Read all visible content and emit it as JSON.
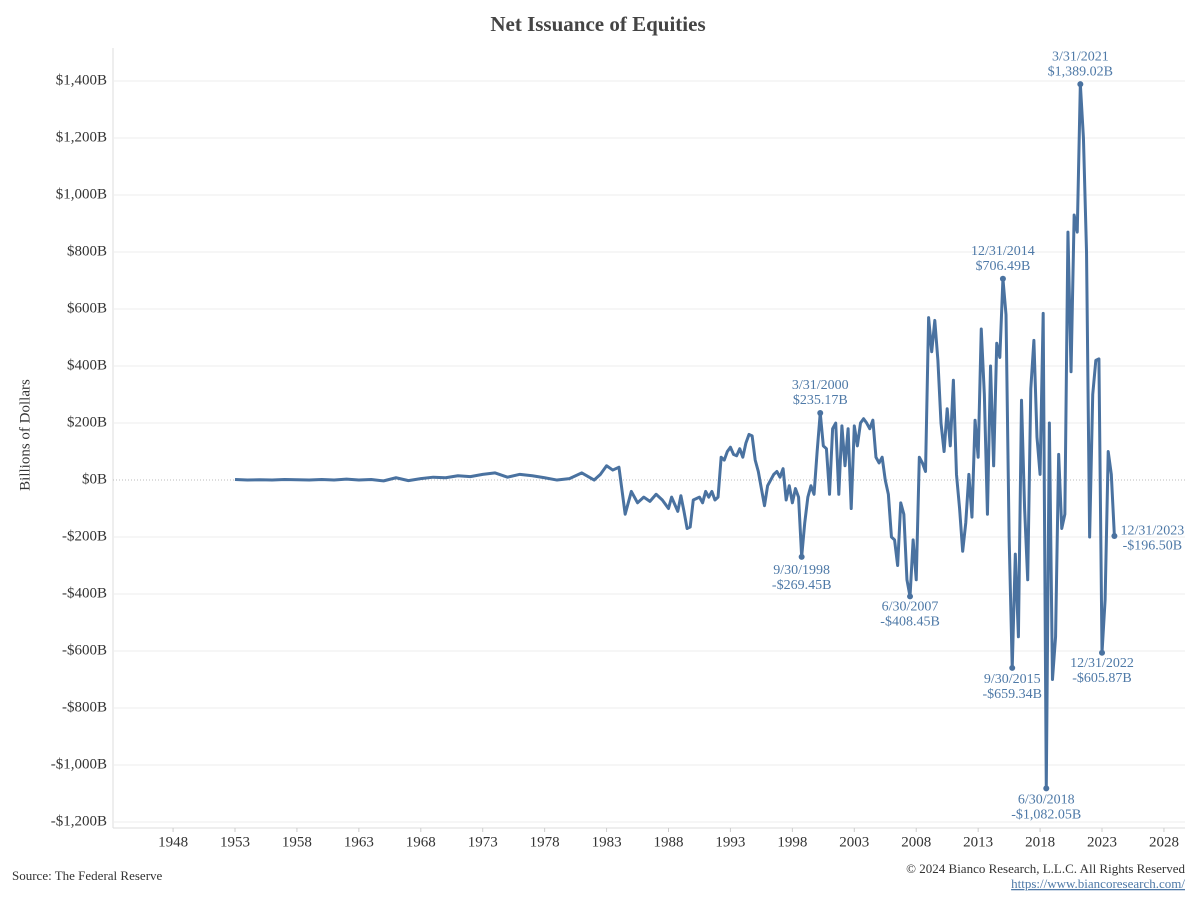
{
  "chart_data": {
    "type": "line",
    "title": "Net Issuance of Equities",
    "ylabel": "Billions of Dollars",
    "source": "Source: The Federal Reserve",
    "copyright": "© 2024 Bianco Research, L.L.C. All Rights Reserved",
    "url": "https://www.biancoresearch.com/",
    "xlim": [
      1943.15,
      2029.7
    ],
    "xticks": [
      1948,
      1953,
      1958,
      1963,
      1968,
      1973,
      1978,
      1983,
      1988,
      1993,
      1998,
      2003,
      2008,
      2013,
      2018,
      2023,
      2028
    ],
    "ylim": [
      -1221,
      1516
    ],
    "yticks": [
      {
        "value": -1200,
        "label": "-$1,200B"
      },
      {
        "value": -1000,
        "label": "-$1,000B"
      },
      {
        "value": -800,
        "label": "-$800B"
      },
      {
        "value": -600,
        "label": "-$600B"
      },
      {
        "value": -400,
        "label": "-$400B"
      },
      {
        "value": -200,
        "label": "-$200B"
      },
      {
        "value": 0,
        "label": "$0B"
      },
      {
        "value": 200,
        "label": "$200B"
      },
      {
        "value": 400,
        "label": "$400B"
      },
      {
        "value": 600,
        "label": "$600B"
      },
      {
        "value": 800,
        "label": "$800B"
      },
      {
        "value": 1000,
        "label": "$1,000B"
      },
      {
        "value": 1200,
        "label": "$1,200B"
      },
      {
        "value": 1400,
        "label": "$1,400B"
      }
    ],
    "grid": true,
    "color": "#4a72a0",
    "x": [
      1953,
      1954,
      1955,
      1956,
      1957,
      1958,
      1959,
      1960,
      1961,
      1962,
      1963,
      1964,
      1965,
      1966,
      1967,
      1968,
      1969,
      1970,
      1971,
      1972,
      1973,
      1974,
      1975,
      1976,
      1977,
      1978,
      1979,
      1980,
      1981,
      1982,
      1982.5,
      1983,
      1983.5,
      1984,
      1984.5,
      1985,
      1985.5,
      1986,
      1986.5,
      1987,
      1987.5,
      1988,
      1988.25,
      1988.75,
      1989,
      1989.25,
      1989.5,
      1989.75,
      1990,
      1990.5,
      1990.75,
      1991,
      1991.25,
      1991.5,
      1991.75,
      1992,
      1992.25,
      1992.5,
      1992.75,
      1993,
      1993.25,
      1993.5,
      1993.75,
      1994,
      1994.25,
      1994.5,
      1994.75,
      1995,
      1995.25,
      1995.5,
      1995.75,
      1996,
      1996.5,
      1996.75,
      1997,
      1997.25,
      1997.5,
      1997.75,
      1998,
      1998.25,
      1998.5,
      1998.75,
      1999,
      1999.25,
      1999.5,
      1999.75,
      2000,
      2000.25,
      2000.5,
      2000.75,
      2001,
      2001.25,
      2001.5,
      2001.75,
      2002,
      2002.25,
      2002.5,
      2002.75,
      2003,
      2003.25,
      2003.5,
      2003.75,
      2004,
      2004.25,
      2004.5,
      2004.75,
      2005,
      2005.25,
      2005.5,
      2005.75,
      2006,
      2006.25,
      2006.5,
      2006.75,
      2007,
      2007.25,
      2007.5,
      2007.75,
      2008,
      2008.25,
      2008.5,
      2008.75,
      2009,
      2009.25,
      2009.5,
      2009.75,
      2010,
      2010.25,
      2010.5,
      2010.75,
      2011,
      2011.25,
      2011.5,
      2011.75,
      2012,
      2012.25,
      2012.5,
      2012.75,
      2013,
      2013.25,
      2013.5,
      2013.75,
      2014,
      2014.25,
      2014.5,
      2014.75,
      2015,
      2015.25,
      2015.5,
      2015.75,
      2016,
      2016.25,
      2016.5,
      2016.75,
      2017,
      2017.25,
      2017.5,
      2017.75,
      2018,
      2018.25,
      2018.5,
      2018.75,
      2019,
      2019.25,
      2019.5,
      2019.75,
      2020,
      2020.25,
      2020.5,
      2020.75,
      2021,
      2021.25,
      2021.5,
      2021.75,
      2022,
      2022.25,
      2022.5,
      2022.75,
      2023,
      2023.25,
      2023.5,
      2023.75,
      2024
    ],
    "values": [
      2,
      0,
      1,
      0,
      2,
      1,
      0,
      2,
      0,
      3,
      0,
      2,
      -3,
      8,
      -2,
      5,
      10,
      8,
      15,
      12,
      20,
      25,
      10,
      20,
      15,
      8,
      0,
      5,
      25,
      0,
      20,
      50,
      35,
      45,
      -120,
      -40,
      -80,
      -60,
      -75,
      -50,
      -70,
      -100,
      -60,
      -110,
      -55,
      -110,
      -170,
      -165,
      -70,
      -60,
      -80,
      -40,
      -60,
      -40,
      -70,
      -60,
      80,
      70,
      100,
      115,
      90,
      85,
      110,
      80,
      130,
      160,
      155,
      70,
      30,
      -30,
      -90,
      -20,
      20,
      30,
      10,
      40,
      -70,
      -20,
      -80,
      -30,
      -60,
      -269.45,
      -150,
      -60,
      -20,
      -50,
      100,
      235.17,
      120,
      110,
      -50,
      180,
      200,
      -50,
      190,
      50,
      180,
      -100,
      190,
      120,
      200,
      215,
      200,
      180,
      210,
      80,
      60,
      80,
      0,
      -50,
      -200,
      -210,
      -300,
      -80,
      -120,
      -350,
      -408.45,
      -210,
      -350,
      80,
      60,
      30,
      570,
      450,
      560,
      420,
      200,
      100,
      250,
      120,
      350,
      20,
      -100,
      -250,
      -150,
      20,
      -130,
      210,
      80,
      530,
      300,
      -120,
      400,
      50,
      480,
      430,
      706.49,
      580,
      -200,
      -659.34,
      -260,
      -550,
      280,
      -100,
      -350,
      320,
      490,
      150,
      20,
      585,
      -1082.05,
      200,
      -700,
      -550,
      90,
      -170,
      -120,
      870,
      380,
      930,
      870,
      1389.02,
      1200,
      800,
      -200,
      300,
      420,
      425,
      -605.87,
      -420,
      100,
      20,
      -196.5
    ],
    "annotations": [
      {
        "date": "9/30/1998",
        "label": "-$269.45B",
        "x": 1998.75,
        "y": -269.45
      },
      {
        "date": "3/31/2000",
        "label": "$235.17B",
        "x": 2000.25,
        "y": 235.17
      },
      {
        "date": "6/30/2007",
        "label": "-$408.45B",
        "x": 2007.5,
        "y": -408.45
      },
      {
        "date": "12/31/2014",
        "label": "$706.49B",
        "x": 2015,
        "y": 706.49
      },
      {
        "date": "9/30/2015",
        "label": "-$659.34B",
        "x": 2015.75,
        "y": -659.34
      },
      {
        "date": "6/30/2018",
        "label": "-$1,082.05B",
        "x": 2018.5,
        "y": -1082.05
      },
      {
        "date": "3/31/2021",
        "label": "$1,389.02B",
        "x": 2021.25,
        "y": 1389.02
      },
      {
        "date": "12/31/2022",
        "label": "-$605.87B",
        "x": 2023,
        "y": -605.87
      },
      {
        "date": "12/31/2023",
        "label": "-$196.50B",
        "x": 2024,
        "y": -196.5
      }
    ]
  }
}
